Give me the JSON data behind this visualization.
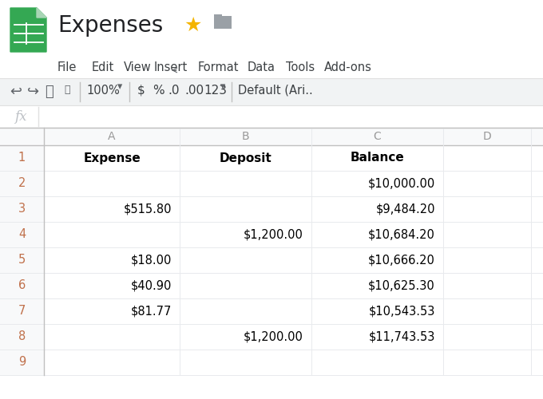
{
  "title": "Expenses",
  "menu_items": [
    "File",
    "Edit",
    "View",
    "Insert",
    "Format",
    "Data",
    "Tools",
    "Add-ons"
  ],
  "col_headers": [
    "A",
    "B",
    "C",
    "D"
  ],
  "headers": [
    "Expense",
    "Deposit",
    "Balance"
  ],
  "col_A": [
    "",
    "$515.80",
    "",
    "$18.00",
    "$40.90",
    "$81.77",
    "",
    ""
  ],
  "col_B": [
    "",
    "",
    "$1,200.00",
    "",
    "",
    "",
    "$1,200.00",
    ""
  ],
  "col_C": [
    "$10,000.00",
    "$9,484.20",
    "$10,684.20",
    "$10,666.20",
    "$10,625.30",
    "$10,543.53",
    "$11,743.53",
    ""
  ],
  "bg_color": "#ffffff",
  "col_header_bg": "#f8f9fa",
  "grid_color": "#d0d0d0",
  "grid_color_light": "#e8eaed",
  "row_num_color": "#c0704a",
  "col_header_color": "#999999",
  "text_color": "#000000",
  "toolbar_bg": "#f1f3f4",
  "green_icon_color": "#34a853",
  "green_icon_dark": "#1e8e3e",
  "star_color": "#f4b400",
  "folder_color": "#9aa0a6"
}
